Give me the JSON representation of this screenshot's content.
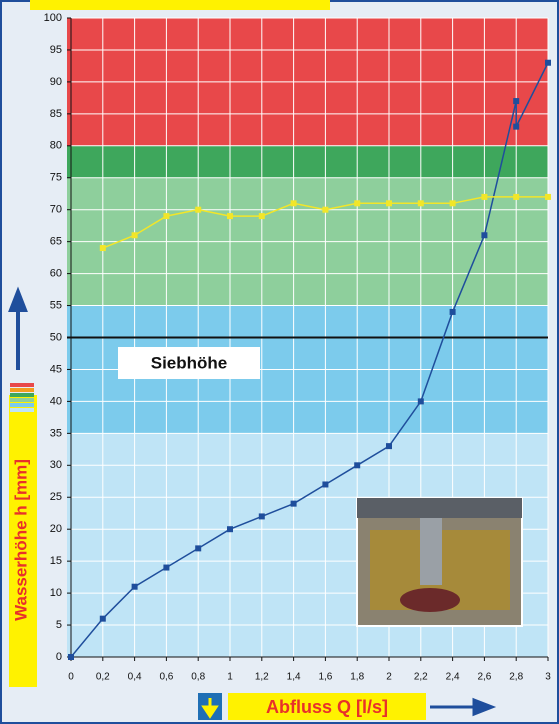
{
  "chart_data": {
    "type": "line",
    "xlabel": "Abfluss Q [l/s]",
    "ylabel": "Wasserhöhe h [mm]",
    "annotation": "Siebhöhe",
    "threshold": 50,
    "xlim": [
      0,
      3
    ],
    "ylim": [
      0,
      100
    ],
    "xticks": [
      0,
      {
        "value": 0.2,
        "label": "0,2"
      },
      {
        "value": 0.4,
        "label": "0,4"
      },
      {
        "value": 0.6,
        "label": "0,6"
      },
      {
        "value": 0.8,
        "label": "0,8"
      },
      1,
      {
        "value": 1.2,
        "label": "1,2"
      },
      {
        "value": 1.4,
        "label": "1,4"
      },
      {
        "value": 1.6,
        "label": "1,6"
      },
      {
        "value": 1.8,
        "label": "1,8"
      },
      2,
      {
        "value": 2.2,
        "label": "2,2"
      },
      {
        "value": 2.4,
        "label": "2,4"
      },
      {
        "value": 2.6,
        "label": "2,6"
      },
      {
        "value": 2.8,
        "label": "2,8"
      },
      3
    ],
    "yticks": [
      0,
      5,
      10,
      15,
      20,
      25,
      30,
      35,
      40,
      45,
      50,
      55,
      60,
      65,
      70,
      75,
      80,
      85,
      90,
      95,
      100
    ],
    "grid": true,
    "bands": [
      {
        "from": 0,
        "to": 35,
        "color": "#bfe4f6"
      },
      {
        "from": 35,
        "to": 55,
        "color": "#7ccbec"
      },
      {
        "from": 55,
        "to": 75,
        "color": "#8ecf9c"
      },
      {
        "from": 75,
        "to": 80,
        "color": "#3ea75c"
      },
      {
        "from": 80,
        "to": 100,
        "color": "#e8484a"
      }
    ],
    "series": [
      {
        "color": "#1f4e9c",
        "x": [
          0,
          0.2,
          0.4,
          0.6,
          0.8,
          1,
          1.2,
          1.4,
          1.6,
          1.8,
          2,
          2.2,
          2.4,
          2.6,
          2.8,
          2.8,
          3
        ],
        "values": [
          0,
          6,
          11,
          14,
          17,
          20,
          22,
          24,
          27,
          30,
          33,
          40,
          54,
          66,
          87,
          83,
          93
        ]
      },
      {
        "color": "#f2e629",
        "x": [
          0.2,
          0.4,
          0.6,
          0.8,
          1,
          1.2,
          1.4,
          1.6,
          1.8,
          2,
          2.2,
          2.4,
          2.6,
          2.8,
          3
        ],
        "values": [
          64,
          66,
          69,
          70,
          69,
          69,
          71,
          70,
          71,
          71,
          71,
          71,
          72,
          72,
          72
        ]
      }
    ]
  }
}
